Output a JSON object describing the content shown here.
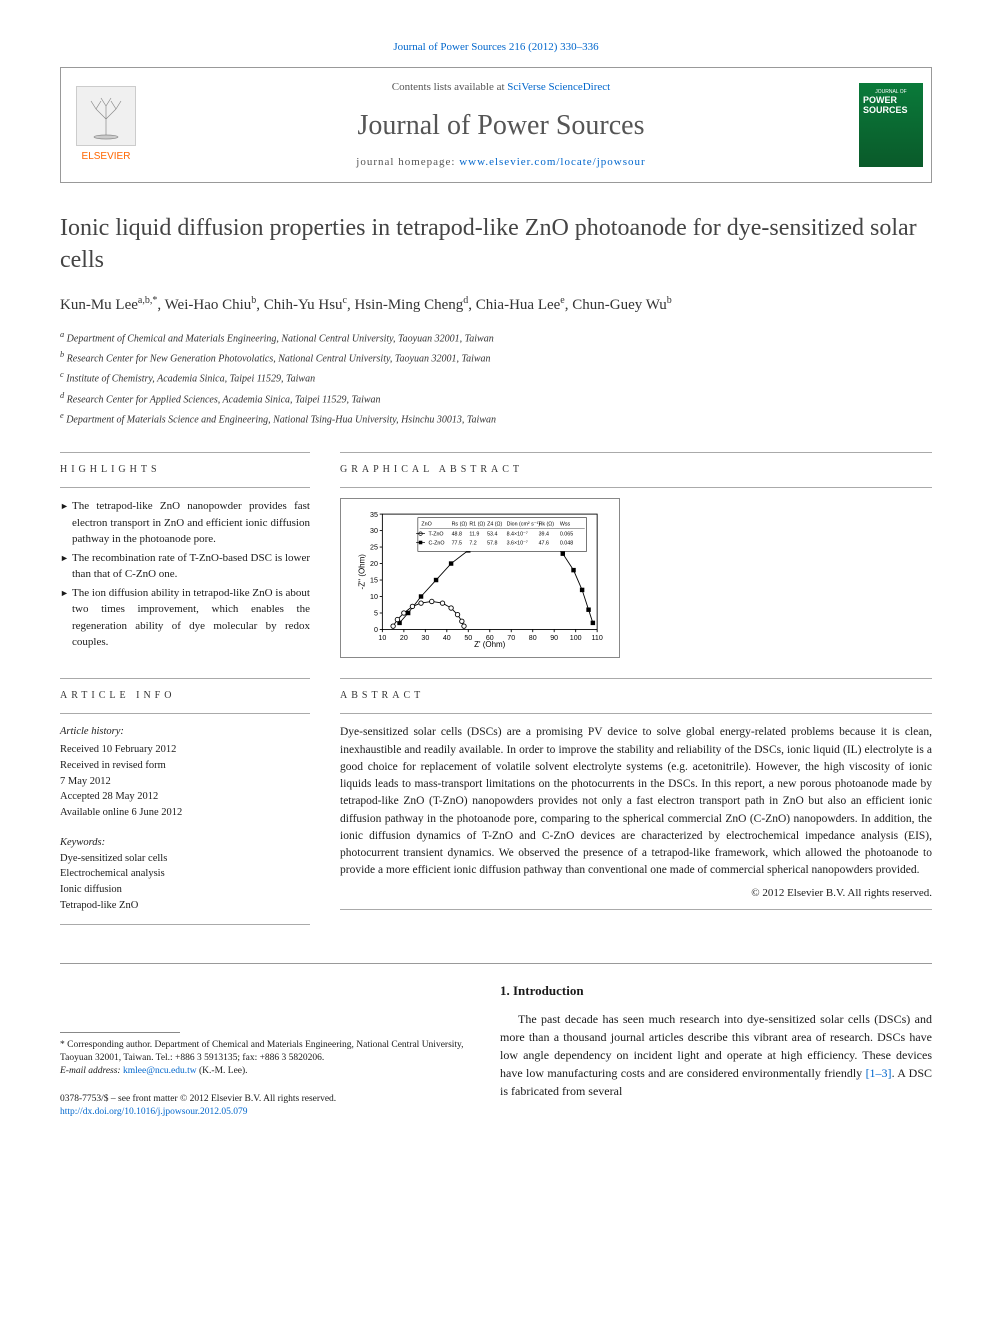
{
  "journal_ref_prefix": "Journal of Power Sources 216 (2012) 330–336",
  "header": {
    "contents_prefix": "Contents lists available at ",
    "contents_link": "SciVerse ScienceDirect",
    "journal_name": "Journal of Power Sources",
    "homepage_prefix": "journal homepage: ",
    "homepage_url": "www.elsevier.com/locate/jpowsour",
    "elsevier_label": "ELSEVIER",
    "cover_small": "JOURNAL OF",
    "cover_big": "POWER SOURCES"
  },
  "title": "Ionic liquid diffusion properties in tetrapod-like ZnO photoanode for dye-sensitized solar cells",
  "authors_html": "Kun-Mu Lee",
  "authors": [
    {
      "name": "Kun-Mu Lee",
      "sup": "a,b,*"
    },
    {
      "name": "Wei-Hao Chiu",
      "sup": "b"
    },
    {
      "name": "Chih-Yu Hsu",
      "sup": "c"
    },
    {
      "name": "Hsin-Ming Cheng",
      "sup": "d"
    },
    {
      "name": "Chia-Hua Lee",
      "sup": "e"
    },
    {
      "name": "Chun-Guey Wu",
      "sup": "b"
    }
  ],
  "affiliations": [
    {
      "sup": "a",
      "text": "Department of Chemical and Materials Engineering, National Central University, Taoyuan 32001, Taiwan"
    },
    {
      "sup": "b",
      "text": "Research Center for New Generation Photovolatics, National Central University, Taoyuan 32001, Taiwan"
    },
    {
      "sup": "c",
      "text": "Institute of Chemistry, Academia Sinica, Taipei 11529, Taiwan"
    },
    {
      "sup": "d",
      "text": "Research Center for Applied Sciences, Academia Sinica, Taipei 11529, Taiwan"
    },
    {
      "sup": "e",
      "text": "Department of Materials Science and Engineering, National Tsing-Hua University, Hsinchu 30013, Taiwan"
    }
  ],
  "highlights_label": "HIGHLIGHTS",
  "highlights": [
    "The tetrapod-like ZnO nanopowder provides fast electron transport in ZnO and efficient ionic diffusion pathway in the photoanode pore.",
    "The recombination rate of T-ZnO-based DSC is lower than that of C-ZnO one.",
    "The ion diffusion ability in tetrapod-like ZnO is about two times improvement, which enables the regeneration ability of dye molecular by redox couples."
  ],
  "graphical_label": "GRAPHICAL ABSTRACT",
  "ga_chart": {
    "type": "scatter-line",
    "xlabel": "Z' (Ohm)",
    "ylabel": "-Z'' (Ohm)",
    "xlim": [
      10,
      110
    ],
    "xtick_step": 10,
    "ylim": [
      0,
      35
    ],
    "ytick_step": 5,
    "series": [
      {
        "marker": "circle-open",
        "label": "T-ZnO",
        "color": "#000000"
      },
      {
        "marker": "square-filled",
        "label": "C-ZnO",
        "color": "#000000"
      }
    ],
    "legend_table": {
      "headers": [
        "ZnO",
        "Rs (Ω)",
        "R1 (Ω)",
        "Z4 (Ω)",
        "Dion (cm² s⁻¹)",
        "Rk (Ω)",
        "Wss"
      ],
      "rows": [
        [
          "T-ZnO",
          "48.8",
          "11.9",
          "53.4",
          "8.4×10⁻⁷",
          "39.4",
          "0.065"
        ],
        [
          "C-ZnO",
          "77.5",
          "7.2",
          "57.8",
          "3.6×10⁻⁷",
          "47.6",
          "0.048"
        ]
      ]
    },
    "tzno_points": [
      [
        15,
        1
      ],
      [
        17,
        3
      ],
      [
        20,
        5
      ],
      [
        24,
        7
      ],
      [
        28,
        8
      ],
      [
        33,
        8.5
      ],
      [
        38,
        8
      ],
      [
        42,
        6.5
      ],
      [
        45,
        4.5
      ],
      [
        47,
        2.5
      ],
      [
        48,
        1
      ]
    ],
    "czno_points": [
      [
        18,
        2
      ],
      [
        22,
        5
      ],
      [
        28,
        10
      ],
      [
        35,
        15
      ],
      [
        42,
        20
      ],
      [
        50,
        24
      ],
      [
        58,
        27
      ],
      [
        66,
        29
      ],
      [
        74,
        30
      ],
      [
        82,
        29
      ],
      [
        88,
        27
      ],
      [
        94,
        23
      ],
      [
        99,
        18
      ],
      [
        103,
        12
      ],
      [
        106,
        6
      ],
      [
        108,
        2
      ]
    ],
    "background_color": "#ffffff",
    "axis_color": "#000000",
    "fontsize": 8
  },
  "article_info_label": "ARTICLE INFO",
  "article_history_head": "Article history:",
  "article_history": [
    "Received 10 February 2012",
    "Received in revised form",
    "7 May 2012",
    "Accepted 28 May 2012",
    "Available online 6 June 2012"
  ],
  "keywords_head": "Keywords:",
  "keywords": [
    "Dye-sensitized solar cells",
    "Electrochemical analysis",
    "Ionic diffusion",
    "Tetrapod-like ZnO"
  ],
  "abstract_label": "ABSTRACT",
  "abstract_text": "Dye-sensitized solar cells (DSCs) are a promising PV device to solve global energy-related problems because it is clean, inexhaustible and readily available. In order to improve the stability and reliability of the DSCs, ionic liquid (IL) electrolyte is a good choice for replacement of volatile solvent electrolyte systems (e.g. acetonitrile). However, the high viscosity of ionic liquids leads to mass-transport limitations on the photocurrents in the DSCs. In this report, a new porous photoanode made by tetrapod-like ZnO (T-ZnO) nanopowders provides not only a fast electron transport path in ZnO but also an efficient ionic diffusion pathway in the photoanode pore, comparing to the spherical commercial ZnO (C-ZnO) nanopowders. In addition, the ionic diffusion dynamics of T-ZnO and C-ZnO devices are characterized by electrochemical impedance analysis (EIS), photocurrent transient dynamics. We observed the presence of a tetrapod-like framework, which allowed the photoanode to provide a more efficient ionic diffusion pathway than conventional one made of commercial spherical nanopowders provided.",
  "copyright": "© 2012 Elsevier B.V. All rights reserved.",
  "intro_head": "1. Introduction",
  "intro_text_pre": "The past decade has seen much research into dye-sensitized solar cells (DSCs) and more than a thousand journal articles describe this vibrant area of research. DSCs have low angle dependency on incident light and operate at high efficiency. These devices have low manufacturing costs and are considered environmentally friendly ",
  "intro_cite": "[1–3]",
  "intro_text_post": ". A DSC is fabricated from several",
  "footnote_corresponding": "* Corresponding author. Department of Chemical and Materials Engineering, National Central University, Taoyuan 32001, Taiwan. Tel.: +886 3 5913135; fax: +886 3 5820206.",
  "footnote_email_label": "E-mail address: ",
  "footnote_email": "kmlee@ncu.edu.tw",
  "footnote_email_suffix": " (K.-M. Lee).",
  "footer_line1": "0378-7753/$ – see front matter © 2012 Elsevier B.V. All rights reserved.",
  "footer_doi": "http://dx.doi.org/10.1016/j.jpowsour.2012.05.079"
}
